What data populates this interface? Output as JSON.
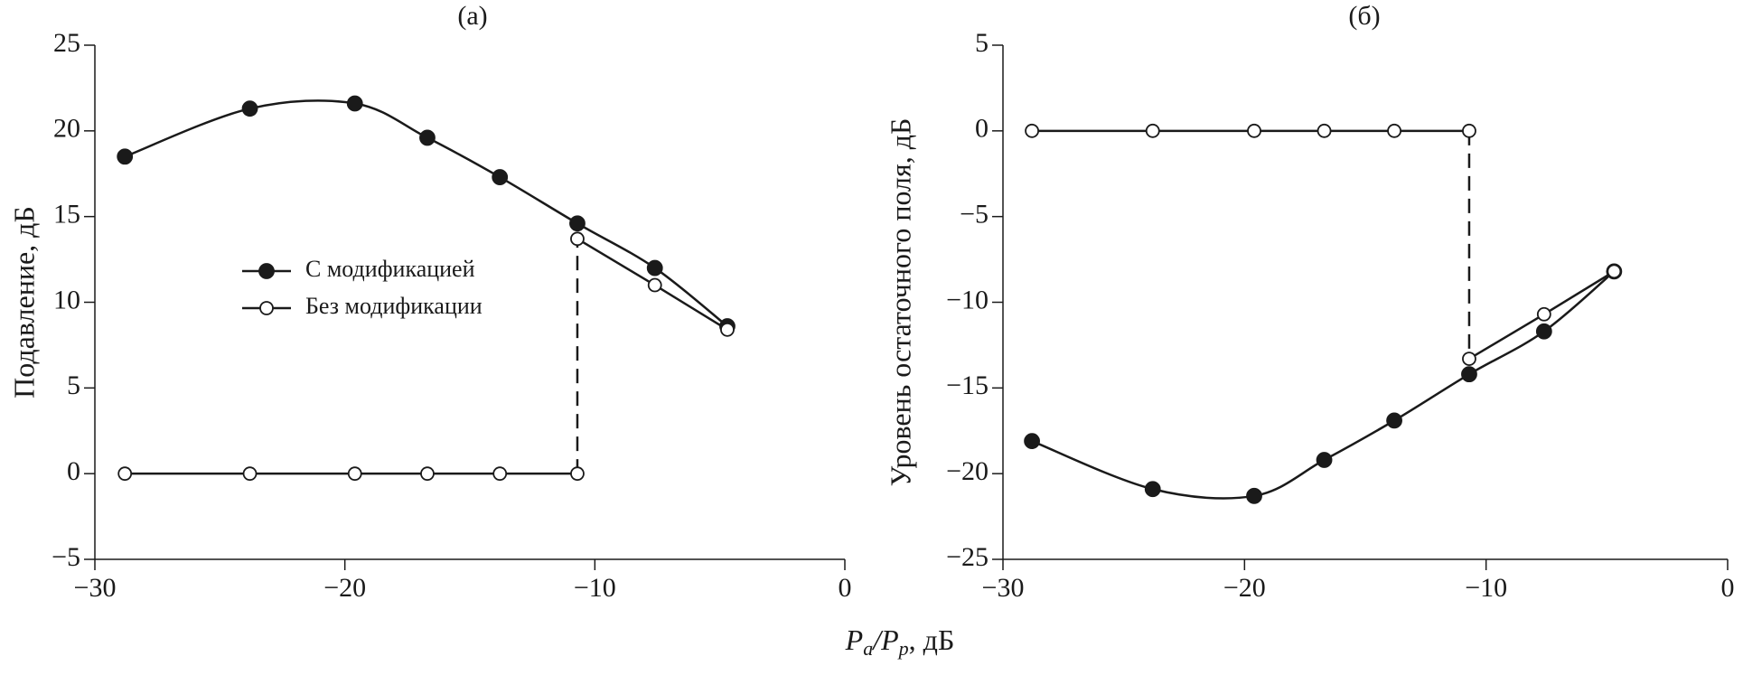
{
  "chart_data": [
    {
      "type": "line",
      "title": "(а)",
      "y_label": "Подавление, дБ",
      "xlim": [
        -30,
        0
      ],
      "ylim": [
        -5,
        25
      ],
      "xticks": [
        {
          "value": -30,
          "label": "−30"
        },
        {
          "value": -20,
          "label": "−20"
        },
        {
          "value": -10,
          "label": "−10"
        },
        0
      ],
      "yticks": [
        {
          "value": -5,
          "label": "−5"
        },
        0,
        5,
        10,
        15,
        20,
        25
      ],
      "legend": true,
      "series": [
        {
          "name": "С модификацией",
          "color": "#1a1a1a",
          "marker": "filled",
          "smooth": true,
          "x": [
            -28.8,
            -23.8,
            -19.6,
            -16.7,
            -13.8,
            -10.7,
            -7.6,
            -4.7
          ],
          "values": [
            18.5,
            21.3,
            21.6,
            19.6,
            17.3,
            14.6,
            12.0,
            8.6
          ]
        },
        {
          "name": "Без модификации",
          "color": "#1a1a1a",
          "marker": "open",
          "smooth": false,
          "x": [
            -28.8,
            -23.8,
            -19.6,
            -16.7,
            -13.8,
            -10.7,
            -10.7,
            -7.6,
            -4.7
          ],
          "values": [
            0,
            0,
            0,
            0,
            0,
            0,
            13.7,
            11.0,
            8.4
          ]
        }
      ]
    },
    {
      "type": "line",
      "title": "(б)",
      "y_label": "Уровень остаточного поля, дБ",
      "xlim": [
        -30,
        0
      ],
      "ylim": [
        -25,
        5
      ],
      "xticks": [
        {
          "value": -30,
          "label": "−30"
        },
        {
          "value": -20,
          "label": "−20"
        },
        {
          "value": -10,
          "label": "−10"
        },
        0
      ],
      "yticks": [
        {
          "value": -25,
          "label": "−25"
        },
        {
          "value": -20,
          "label": "−20"
        },
        {
          "value": -15,
          "label": "−15"
        },
        {
          "value": -10,
          "label": "−10"
        },
        {
          "value": -5,
          "label": "−5"
        },
        0,
        5
      ],
      "legend": false,
      "series": [
        {
          "color": "#1a1a1a",
          "marker": "filled",
          "smooth": true,
          "x": [
            -28.8,
            -23.8,
            -19.6,
            -16.7,
            -13.8,
            -10.7,
            -7.6,
            -4.7
          ],
          "values": [
            -18.1,
            -20.9,
            -21.3,
            -19.2,
            -16.9,
            -14.2,
            -11.7,
            -8.2
          ]
        },
        {
          "color": "#1a1a1a",
          "marker": "open",
          "smooth": false,
          "x": [
            -28.8,
            -23.8,
            -19.6,
            -16.7,
            -13.8,
            -10.7,
            -10.7,
            -7.6,
            -4.7
          ],
          "values": [
            0,
            0,
            0,
            0,
            0,
            0,
            -13.3,
            -10.7,
            -8.2
          ]
        }
      ]
    }
  ],
  "x_label": [
    "P",
    "a",
    "/P",
    "p",
    ", дБ"
  ]
}
